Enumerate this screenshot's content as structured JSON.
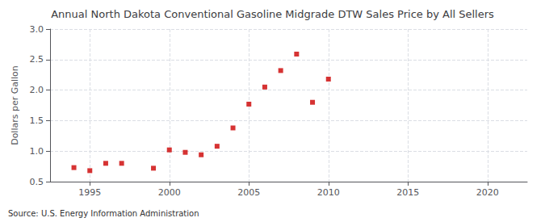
{
  "chart_data": {
    "type": "scatter",
    "title": "Annual North Dakota Conventional Gasoline Midgrade DTW Sales Price by All Sellers",
    "ylabel": "Dollars per Gallon",
    "source": "Source: U.S. Energy Information Administration",
    "x": [
      1994,
      1995,
      1996,
      1997,
      1999,
      2000,
      2001,
      2002,
      2003,
      2004,
      2005,
      2006,
      2007,
      2008,
      2009,
      2010
    ],
    "values": [
      0.73,
      0.68,
      0.8,
      0.8,
      0.72,
      1.02,
      0.98,
      0.94,
      1.08,
      1.38,
      1.77,
      2.05,
      2.32,
      2.59,
      1.8,
      2.18
    ],
    "color": "#cc0000",
    "marker": "square",
    "xlim": [
      1992.5,
      2022.5
    ],
    "xticks": [
      1995,
      2000,
      2005,
      2010,
      2015,
      2020
    ],
    "ylim": [
      0.5,
      3.0
    ],
    "yticks": [
      {
        "value": 0.5,
        "label": "0.5"
      },
      {
        "value": 1.0,
        "label": "1.0"
      },
      {
        "value": 1.5,
        "label": "1.5"
      },
      {
        "value": 2.0,
        "label": "2.0"
      },
      {
        "value": 2.5,
        "label": "2.5"
      },
      {
        "value": 3.0,
        "label": "3.0"
      }
    ],
    "grid": true
  }
}
